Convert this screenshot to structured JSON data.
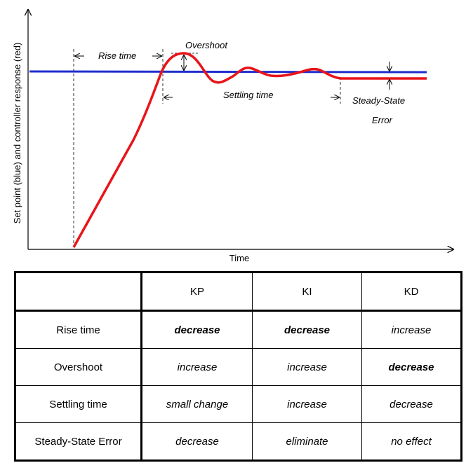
{
  "colors": {
    "setpoint": "#1f2ecc",
    "response": "#e8141a",
    "axis": "#000000"
  },
  "diagram": {
    "ylabel": "Set point (blue) and controller response (red)",
    "xlabel": "Time",
    "annotations": {
      "rise_time": "Rise time",
      "overshoot": "Overshoot",
      "settling_time": "Settling time",
      "steady_state_1": "Steady-State",
      "steady_state_2": "Error"
    }
  },
  "table": {
    "headers": [
      "",
      "KP",
      "KI",
      "KD"
    ],
    "rows": [
      {
        "label": "Rise time",
        "kp": "decrease",
        "ki": "decrease",
        "kd": "increase"
      },
      {
        "label": "Overshoot",
        "kp": "increase",
        "ki": "increase",
        "kd": "decrease"
      },
      {
        "label": "Settling time",
        "kp": "small change",
        "ki": "increase",
        "kd": "decrease"
      },
      {
        "label": "Steady-State Error",
        "kp": "decrease",
        "ki": "eliminate",
        "kd": "no effect"
      }
    ]
  }
}
